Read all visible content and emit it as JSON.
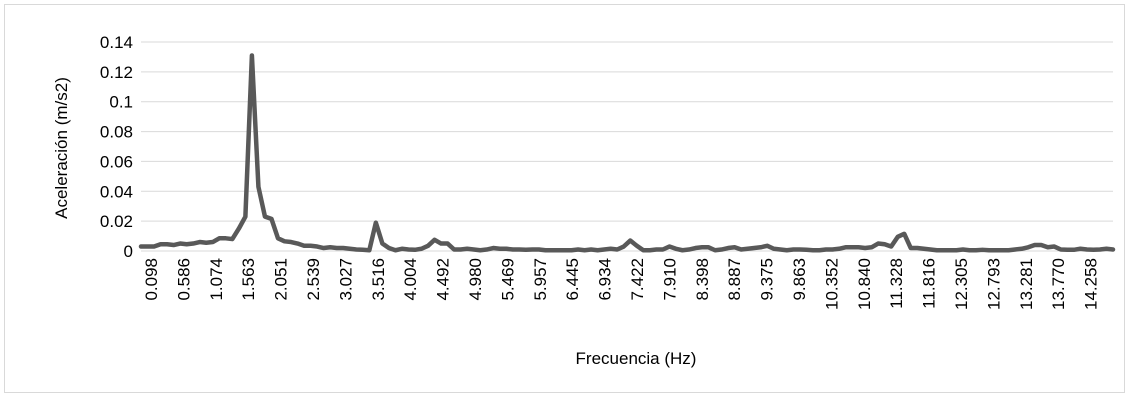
{
  "chart_data": {
    "type": "line",
    "title": "",
    "xlabel": "Frecuencia (Hz)",
    "ylabel": "Aceleración (m/s2)",
    "ylim": [
      0,
      0.14
    ],
    "yticks": [
      "0",
      "0.02",
      "0.04",
      "0.06",
      "0.08",
      "0.1",
      "0.12",
      "0.14"
    ],
    "xticks": [
      "0.098",
      "0.586",
      "1.074",
      "1.563",
      "2.051",
      "2.539",
      "3.027",
      "3.516",
      "4.004",
      "4.492",
      "4.980",
      "5.469",
      "5.957",
      "6.445",
      "6.934",
      "7.422",
      "7.910",
      "8.398",
      "8.887",
      "9.375",
      "9.863",
      "10.352",
      "10.840",
      "11.328",
      "11.816",
      "12.305",
      "12.793",
      "13.281",
      "13.770",
      "14.258"
    ],
    "grid": true,
    "legend": "none",
    "line_color": "#595959",
    "series": [
      {
        "values": [
          0.003,
          0.003,
          0.003,
          0.0045,
          0.0045,
          0.004,
          0.005,
          0.0045,
          0.005,
          0.006,
          0.0055,
          0.006,
          0.0085,
          0.0085,
          0.008,
          0.015,
          0.023,
          0.131,
          0.043,
          0.023,
          0.0215,
          0.0085,
          0.0065,
          0.006,
          0.005,
          0.0035,
          0.0035,
          0.003,
          0.002,
          0.0025,
          0.002,
          0.002,
          0.0015,
          0.001,
          0.0008,
          0.0005,
          0.019,
          0.005,
          0.002,
          0.0005,
          0.0015,
          0.001,
          0.0008,
          0.0015,
          0.0035,
          0.0075,
          0.005,
          0.005,
          0.001,
          0.001,
          0.0015,
          0.001,
          0.0005,
          0.001,
          0.002,
          0.0015,
          0.0015,
          0.001,
          0.001,
          0.0008,
          0.001,
          0.001,
          0.0005,
          0.0005,
          0.0005,
          0.0005,
          0.0005,
          0.001,
          0.0005,
          0.001,
          0.0005,
          0.001,
          0.0015,
          0.001,
          0.003,
          0.007,
          0.0035,
          0.0005,
          0.0005,
          0.001,
          0.001,
          0.003,
          0.0015,
          0.0005,
          0.001,
          0.002,
          0.0025,
          0.0025,
          0.0005,
          0.001,
          0.002,
          0.0025,
          0.001,
          0.0015,
          0.002,
          0.0025,
          0.0035,
          0.0015,
          0.001,
          0.0005,
          0.001,
          0.001,
          0.0008,
          0.0005,
          0.0005,
          0.001,
          0.001,
          0.0015,
          0.0025,
          0.0025,
          0.0025,
          0.002,
          0.0025,
          0.005,
          0.0045,
          0.003,
          0.0095,
          0.0115,
          0.002,
          0.002,
          0.0015,
          0.001,
          0.0005,
          0.0005,
          0.0005,
          0.0005,
          0.001,
          0.0005,
          0.0005,
          0.0008,
          0.0005,
          0.0005,
          0.0005,
          0.0005,
          0.001,
          0.0015,
          0.0025,
          0.004,
          0.004,
          0.0025,
          0.003,
          0.001,
          0.0008,
          0.0008,
          0.0015,
          0.001,
          0.0008,
          0.001,
          0.0015,
          0.001
        ]
      }
    ]
  }
}
